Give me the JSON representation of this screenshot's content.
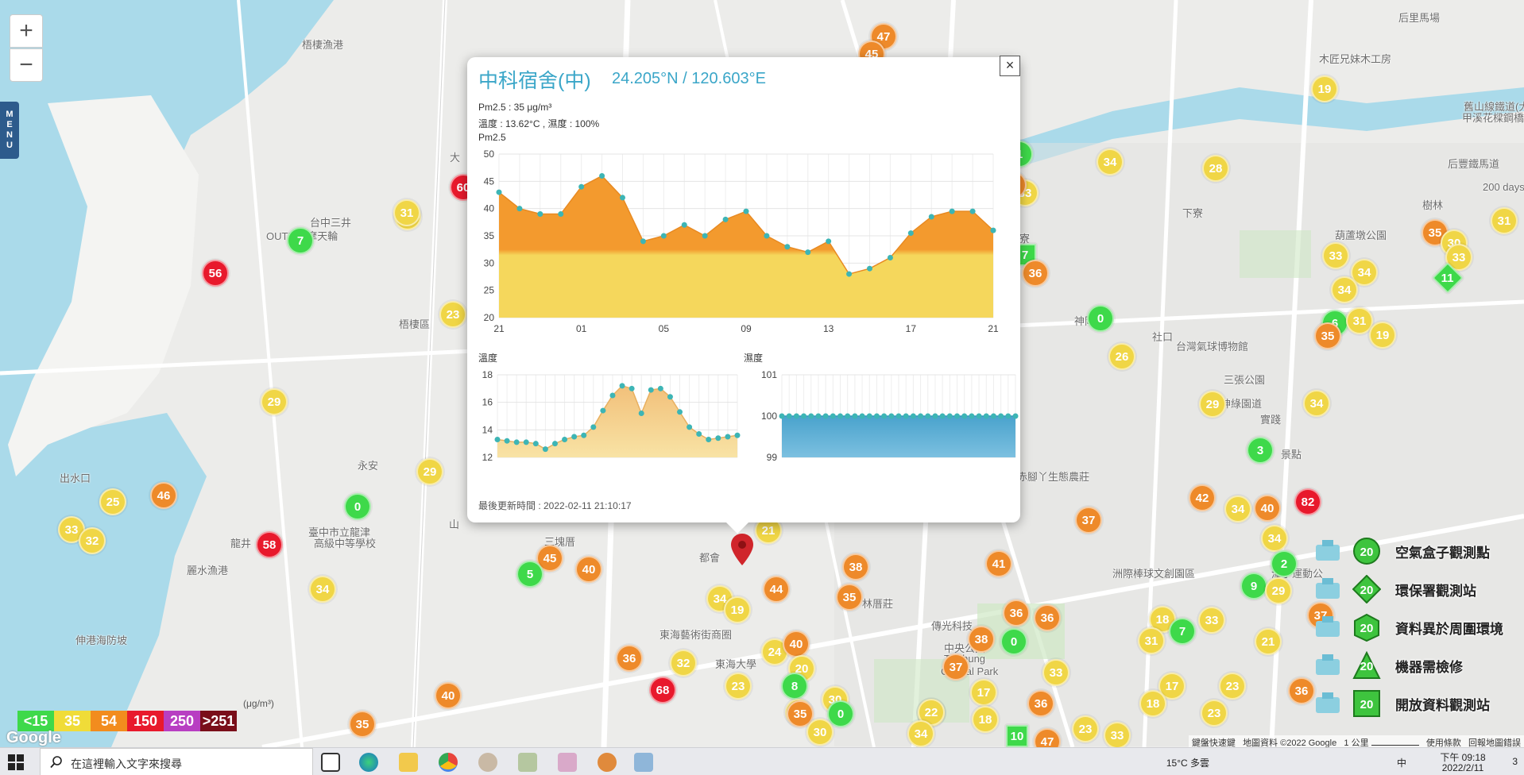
{
  "map": {
    "zoom_in": "+",
    "zoom_out": "−",
    "menu_label": [
      "M",
      "E",
      "N",
      "U"
    ],
    "places": [
      {
        "name": "梧棲漁港"
      },
      {
        "name": "台中三井"
      },
      {
        "name": "OUTLET摩天輪"
      },
      {
        "name": "梧棲區"
      },
      {
        "name": "大"
      },
      {
        "name": "永安"
      },
      {
        "name": "臺中市立龍津"
      },
      {
        "name": "高級中等學校"
      },
      {
        "name": "龍井"
      },
      {
        "name": "麗水漁港"
      },
      {
        "name": "伸港海防坡"
      },
      {
        "name": "山"
      },
      {
        "name": "三塊厝"
      },
      {
        "name": "都會"
      },
      {
        "name": "東海藝術街商圈"
      },
      {
        "name": "東海大學"
      },
      {
        "name": "林厝莊"
      },
      {
        "name": "傳光科技"
      },
      {
        "name": "中央公園"
      },
      {
        "name": "Taichung"
      },
      {
        "name": "Central Park"
      },
      {
        "name": "田寮"
      },
      {
        "name": "神岡區"
      },
      {
        "name": "社口"
      },
      {
        "name": "台灣氣球博物館"
      },
      {
        "name": "三張公園"
      },
      {
        "name": "潭雅神綠園道"
      },
      {
        "name": "赤腳丫生態農莊"
      },
      {
        "name": "洲際棒球文創園區"
      },
      {
        "name": "潭子運動公"
      },
      {
        "name": "實踐"
      },
      {
        "name": "景點"
      },
      {
        "name": "后里馬場"
      },
      {
        "name": "木匠兄妹木工房"
      },
      {
        "name": "舊山線鐵道(大"
      },
      {
        "name": "甲溪花樑鋼橋)"
      },
      {
        "name": "后豐鐵馬道"
      },
      {
        "name": "200 days"
      },
      {
        "name": "樹林"
      },
      {
        "name": "葫蘆墩公園"
      },
      {
        "name": "下寮"
      },
      {
        "name": "出水口"
      },
      {
        "name": "寶保齡球館"
      }
    ],
    "markers": [
      {
        "v": "47"
      },
      {
        "v": "45"
      },
      {
        "v": "19"
      },
      {
        "v": "34"
      },
      {
        "v": "28"
      },
      {
        "v": "31"
      },
      {
        "v": "35"
      },
      {
        "v": "30"
      },
      {
        "v": "33"
      },
      {
        "v": "11"
      },
      {
        "v": "33"
      },
      {
        "v": "34"
      },
      {
        "v": "34"
      },
      {
        "v": "6"
      },
      {
        "v": "31"
      },
      {
        "v": "19"
      },
      {
        "v": "35"
      },
      {
        "v": "29"
      },
      {
        "v": "26"
      },
      {
        "v": "0"
      },
      {
        "v": "7"
      },
      {
        "v": "36"
      },
      {
        "v": "1"
      },
      {
        "v": "33"
      },
      {
        "v": "34"
      },
      {
        "v": "3"
      },
      {
        "v": "42"
      },
      {
        "v": "34"
      },
      {
        "v": "40"
      },
      {
        "v": "82"
      },
      {
        "v": "34"
      },
      {
        "v": "2"
      },
      {
        "v": "9"
      },
      {
        "v": "29"
      },
      {
        "v": "37"
      },
      {
        "v": "37"
      },
      {
        "v": "41"
      },
      {
        "v": "38"
      },
      {
        "v": "36"
      },
      {
        "v": "38"
      },
      {
        "v": "36"
      },
      {
        "v": "0"
      },
      {
        "v": "18"
      },
      {
        "v": "33"
      },
      {
        "v": "17"
      },
      {
        "v": "31"
      },
      {
        "v": "21"
      },
      {
        "v": "7"
      },
      {
        "v": "36"
      },
      {
        "v": "37"
      },
      {
        "v": "33"
      },
      {
        "v": "36"
      },
      {
        "v": "17"
      },
      {
        "v": "23"
      },
      {
        "v": "18"
      },
      {
        "v": "22"
      },
      {
        "v": "18"
      },
      {
        "v": "23"
      },
      {
        "v": "33"
      },
      {
        "v": "10"
      },
      {
        "v": "47"
      },
      {
        "v": "23"
      },
      {
        "v": "56"
      },
      {
        "v": "7"
      },
      {
        "v": "31"
      },
      {
        "v": "23"
      },
      {
        "v": "29"
      },
      {
        "v": "29"
      },
      {
        "v": "25"
      },
      {
        "v": "46"
      },
      {
        "v": "0"
      },
      {
        "v": "33"
      },
      {
        "v": "32"
      },
      {
        "v": "58"
      },
      {
        "v": "34"
      },
      {
        "v": "35"
      },
      {
        "v": "40"
      },
      {
        "v": "45"
      },
      {
        "v": "40"
      },
      {
        "v": "5"
      },
      {
        "v": "36"
      },
      {
        "v": "32"
      },
      {
        "v": "68"
      },
      {
        "v": "34"
      },
      {
        "v": "19"
      },
      {
        "v": "44"
      },
      {
        "v": "35"
      },
      {
        "v": "21"
      },
      {
        "v": "24"
      },
      {
        "v": "40"
      },
      {
        "v": "20"
      },
      {
        "v": "8"
      },
      {
        "v": "23"
      },
      {
        "v": "33"
      },
      {
        "v": "30"
      },
      {
        "v": "35"
      },
      {
        "v": "0"
      },
      {
        "v": "30"
      },
      {
        "v": "22"
      },
      {
        "v": "34"
      },
      {
        "v": "60"
      },
      {
        "v": "31"
      },
      {
        "v": "35"
      }
    ],
    "attribution": [
      "鍵盤快速鍵",
      "地圖資料 ©2022 Google",
      "1 公里",
      "使用條款",
      "回報地圖錯誤"
    ],
    "google_logo": "Google"
  },
  "popup": {
    "close": "×",
    "title": "中科宿舍(中)",
    "coords": "24.205°N / 120.603°E",
    "pm25_line": "Pm2.5 : 35 μg/m³",
    "temp_line": "溫度 : 13.62°C , 濕度 : 100%",
    "chart_label": "Pm2.5",
    "updated": "最後更新時間 : 2022-02-11 21:10:17"
  },
  "chart_data": [
    {
      "type": "area",
      "title": "Pm2.5",
      "x_ticks": [
        "21",
        "01",
        "05",
        "09",
        "13",
        "17",
        "21"
      ],
      "ylim": [
        20,
        50
      ],
      "y_ticks": [
        20,
        25,
        30,
        35,
        40,
        45,
        50
      ],
      "values": [
        43,
        40,
        39,
        39,
        44,
        46,
        42,
        34,
        35,
        37,
        35,
        38,
        39.5,
        35,
        33,
        32,
        34,
        28,
        29,
        31,
        35.5,
        38.5,
        39.5,
        39.5,
        36
      ],
      "grid": true
    },
    {
      "type": "area",
      "title": "溫度",
      "ylim": [
        12,
        18
      ],
      "y_ticks": [
        12,
        14,
        16,
        18
      ],
      "values": [
        13.3,
        13.2,
        13.1,
        13.1,
        13.0,
        12.6,
        13.0,
        13.3,
        13.5,
        13.6,
        14.2,
        15.4,
        16.5,
        17.2,
        17.0,
        15.2,
        16.9,
        17.0,
        16.4,
        15.3,
        14.2,
        13.7,
        13.3,
        13.4,
        13.5,
        13.6
      ],
      "grid": true
    },
    {
      "type": "area",
      "title": "濕度",
      "ylim": [
        99,
        101
      ],
      "y_ticks": [
        99,
        100,
        101
      ],
      "values": [
        100,
        100,
        100,
        100,
        100,
        100,
        100,
        100,
        100,
        100,
        100,
        100,
        100,
        100,
        100,
        100,
        100,
        100,
        100,
        100,
        100,
        100,
        100,
        100,
        100,
        100,
        100,
        100,
        100,
        100,
        100,
        100,
        100
      ],
      "grid": true
    }
  ],
  "aqi_legend": {
    "unit": "(μg/m³)",
    "items": [
      {
        "label": "<15",
        "color": "#3ed94a"
      },
      {
        "label": "35",
        "color": "#f0dc38"
      },
      {
        "label": "54",
        "color": "#f28c1e"
      },
      {
        "label": "150",
        "color": "#e8192c"
      },
      {
        "label": "250",
        "color": "#b83ec2"
      },
      {
        "label": ">251",
        "color": "#7a0f1a"
      }
    ]
  },
  "station_legend": [
    {
      "label": "空氣盒子觀測點",
      "sample": "20",
      "shape": "circle"
    },
    {
      "label": "環保署觀測站",
      "sample": "20",
      "shape": "diamond"
    },
    {
      "label": "資料異於周圍環境",
      "sample": "20",
      "shape": "hexagon"
    },
    {
      "label": "機器需檢修",
      "sample": "20",
      "shape": "triangle"
    },
    {
      "label": "開放資料觀測站",
      "sample": "20",
      "shape": "square"
    }
  ],
  "taskbar": {
    "search_placeholder": "在這裡輸入文字來搜尋",
    "weather": "15°C 多雲",
    "ime": "中",
    "time": "下午 09:18",
    "date": "2022/2/11",
    "notifications": "3"
  },
  "colors": {
    "green": "#3ed94a",
    "yellow": "#f0d646",
    "orange": "#ee8a2a",
    "red": "#e8192c",
    "popup_title": "#3aa6c8",
    "pm_fill_top": "#f39a2e",
    "pm_fill_bottom": "#f5d75c",
    "humidity_fill": "#5aaed4",
    "point": "#3db5b5"
  }
}
